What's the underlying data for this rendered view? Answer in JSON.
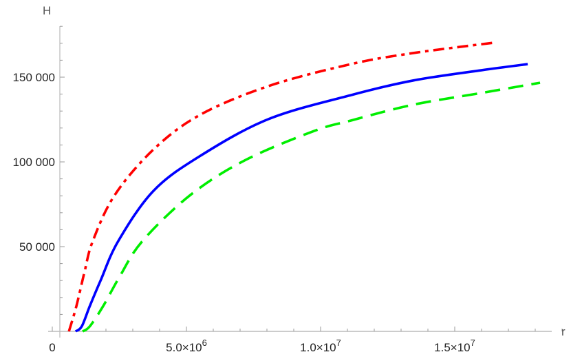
{
  "chart_data": {
    "type": "line",
    "title": "",
    "xlabel": "r",
    "ylabel": "H",
    "xlim": [
      0,
      19000000
    ],
    "ylim": [
      0,
      175000
    ],
    "grid": false,
    "legend": "none",
    "x_ticks": [
      {
        "value": 0,
        "label": "0"
      },
      {
        "value": 5000000,
        "label": "5.0×10",
        "exp": "6"
      },
      {
        "value": 10000000,
        "label": "1.0×10",
        "exp": "7"
      },
      {
        "value": 15000000,
        "label": "1.5×10",
        "exp": "7"
      }
    ],
    "y_ticks": [
      {
        "value": 50000,
        "label": "50 000"
      },
      {
        "value": 100000,
        "label": "100 000"
      },
      {
        "value": 150000,
        "label": "150 000"
      }
    ],
    "series": [
      {
        "color": "#ff0000",
        "style": "dot-dash",
        "points": [
          [
            620000,
            0
          ],
          [
            900000,
            15000
          ],
          [
            1200000,
            35000
          ],
          [
            1510000,
            53300
          ],
          [
            2330000,
            80500
          ],
          [
            3770000,
            107300
          ],
          [
            5490000,
            127600
          ],
          [
            8050000,
            144700
          ],
          [
            11130000,
            157700
          ],
          [
            13440000,
            164200
          ],
          [
            16440000,
            170300
          ]
        ]
      },
      {
        "color": "#0000ff",
        "style": "solid",
        "points": [
          [
            870000,
            0
          ],
          [
            1100000,
            3000
          ],
          [
            1400000,
            15000
          ],
          [
            1800000,
            30000
          ],
          [
            2460000,
            53300
          ],
          [
            3770000,
            82900
          ],
          [
            5490000,
            103300
          ],
          [
            8050000,
            125200
          ],
          [
            11130000,
            139400
          ],
          [
            13440000,
            148000
          ],
          [
            16000000,
            154100
          ],
          [
            17720000,
            157700
          ]
        ]
      },
      {
        "color": "#00ee00",
        "style": "dashed",
        "points": [
          [
            1130000,
            0
          ],
          [
            1400000,
            3000
          ],
          [
            1900000,
            15000
          ],
          [
            2500000,
            32000
          ],
          [
            3360000,
            53300
          ],
          [
            5150000,
            80500
          ],
          [
            7210000,
            101200
          ],
          [
            9770000,
            118300
          ],
          [
            11130000,
            124400
          ],
          [
            13440000,
            133700
          ],
          [
            16000000,
            140700
          ],
          [
            18180000,
            146700
          ]
        ]
      }
    ]
  }
}
